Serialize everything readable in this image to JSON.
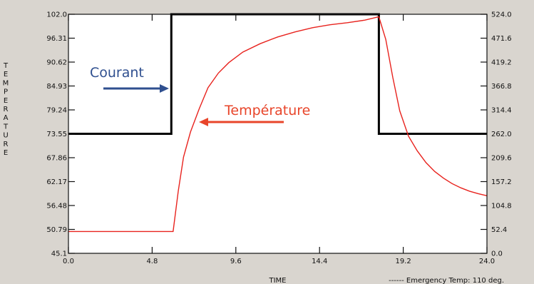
{
  "chart_data": {
    "type": "line",
    "title": "",
    "xlabel": "TIME",
    "ylabel_left": "TEMPERATURE",
    "xlim": [
      0.0,
      24.0
    ],
    "ylim_left": [
      45.1,
      102.0
    ],
    "ylim_right": [
      0.0,
      524.0
    ],
    "x_ticks": [
      "0.0",
      "4.8",
      "9.6",
      "14.4",
      "19.2",
      "24.0"
    ],
    "left_ticks": [
      "102.0",
      "96.31",
      "90.62",
      "84.93",
      "79.24",
      "73.55",
      "67.86",
      "62.17",
      "56.48",
      "50.79",
      "45.1"
    ],
    "right_ticks": [
      "524.0",
      "471.6",
      "419.2",
      "366.8",
      "314.4",
      "262.0",
      "209.6",
      "157.2",
      "104.8",
      "52.4",
      "0.0"
    ],
    "footnote": "------ Emergency Temp: 110 deg.",
    "colors": {
      "plot_bg": "#ffffff",
      "page_bg": "#d9d5cf",
      "temperature": "#e8231e",
      "current": "#000000",
      "courant_text": "#2f4f8f",
      "temperature_text": "#e8452a"
    },
    "annotations": [
      {
        "text": "Courant",
        "color": "#2f4f8f"
      },
      {
        "text": "Température",
        "color": "#e8452a"
      }
    ],
    "series": [
      {
        "name": "Courant",
        "axis": "right",
        "color": "#000000",
        "x": [
          0.0,
          5.9,
          5.9,
          17.8,
          17.8,
          24.0
        ],
        "y": [
          262.0,
          262.0,
          524.0,
          524.0,
          262.0,
          262.0
        ]
      },
      {
        "name": "Température",
        "axis": "left",
        "color": "#e8231e",
        "x": [
          0.0,
          6.0,
          6.3,
          6.6,
          7.0,
          7.5,
          8.0,
          8.6,
          9.2,
          10.0,
          11.0,
          12.0,
          13.0,
          14.0,
          15.0,
          16.0,
          17.0,
          17.8,
          18.2,
          18.6,
          19.0,
          19.5,
          20.0,
          20.5,
          21.0,
          21.5,
          22.0,
          22.5,
          23.0,
          23.5,
          24.0
        ],
        "y": [
          50.3,
          50.3,
          60.0,
          68.0,
          74.0,
          79.5,
          84.5,
          88.0,
          90.5,
          93.0,
          95.0,
          96.6,
          97.8,
          98.8,
          99.5,
          100.0,
          100.6,
          101.4,
          96.0,
          87.0,
          79.0,
          73.0,
          69.5,
          66.7,
          64.6,
          63.0,
          61.7,
          60.7,
          59.9,
          59.3,
          58.8
        ]
      }
    ]
  }
}
